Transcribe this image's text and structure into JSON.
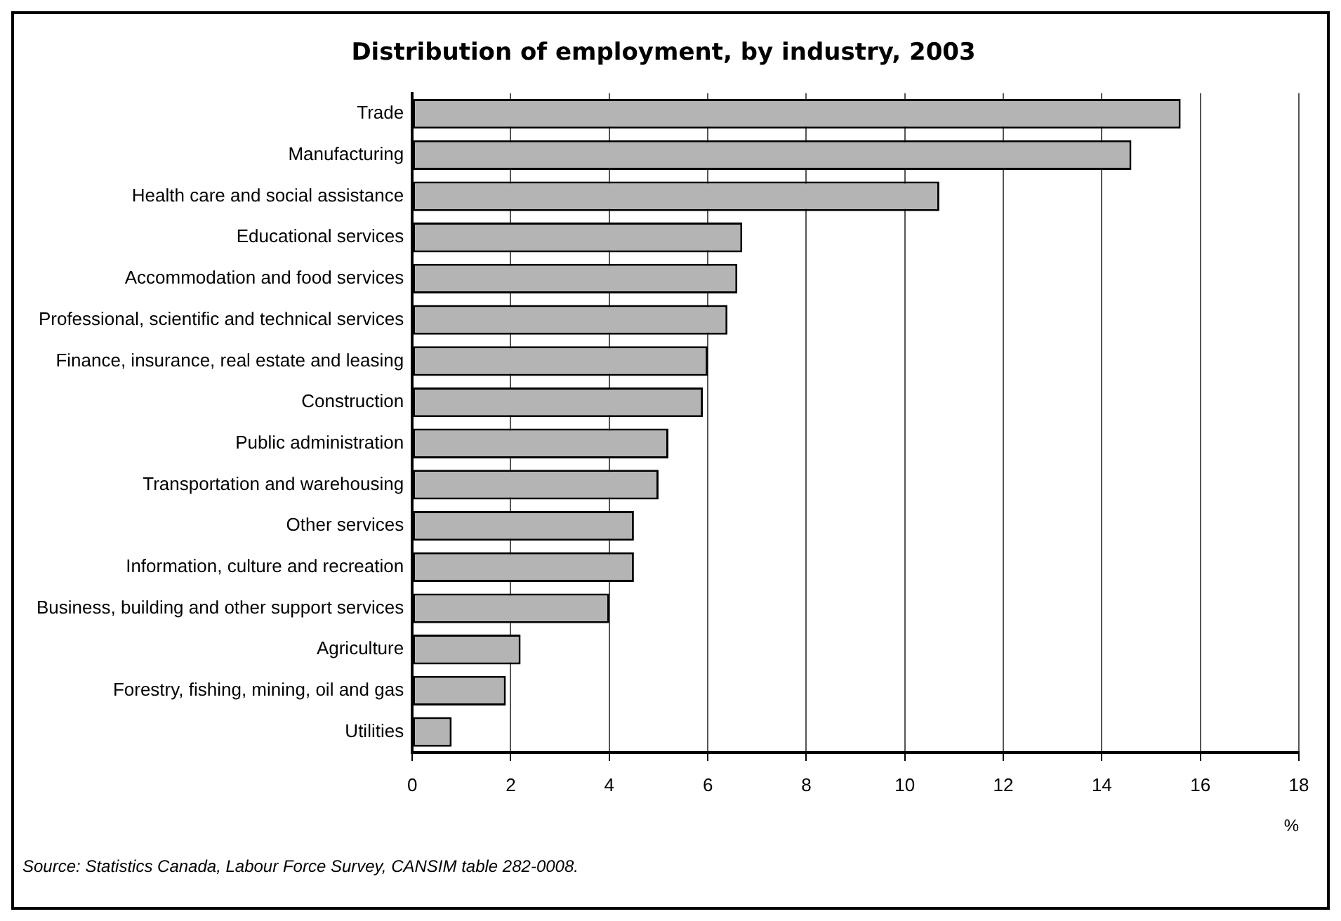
{
  "chart_data": {
    "type": "bar",
    "orientation": "horizontal",
    "title": "Distribution of employment, by industry, 2003",
    "xlabel": "%",
    "categories": [
      "Trade",
      "Manufacturing",
      "Health care and social assistance",
      "Educational services",
      "Accommodation and food services",
      "Professional, scientific and technical services",
      "Finance, insurance, real estate and leasing",
      "Construction",
      "Public administration",
      "Transportation and warehousing",
      "Other services",
      "Information, culture and recreation",
      "Business, building and other support services",
      "Agriculture",
      "Forestry, fishing, mining, oil and gas",
      "Utilities"
    ],
    "values": [
      15.6,
      14.6,
      10.7,
      6.7,
      6.6,
      6.4,
      6.0,
      5.9,
      5.2,
      5.0,
      4.5,
      4.5,
      4.0,
      2.2,
      1.9,
      0.8
    ],
    "color": "#b4b4b4",
    "xlim": [
      0,
      18
    ],
    "xticks": [
      0,
      2,
      4,
      6,
      8,
      10,
      12,
      14,
      16,
      18
    ],
    "grid": "x",
    "legend": false,
    "annotations": [
      "Source: Statistics Canada, Labour Force Survey, CANSIM table 282-0008."
    ]
  }
}
